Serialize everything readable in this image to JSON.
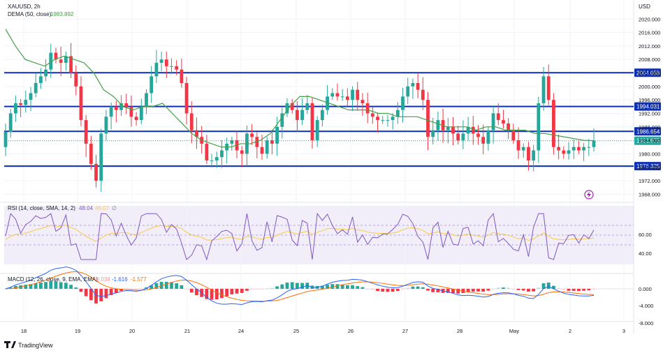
{
  "header": {
    "symbol": "XAUUSD, 2h",
    "dema_label": "DEMA (50, close)",
    "dema_value": "1983.892",
    "currency": "USD"
  },
  "rsi": {
    "label": "RSI (14, close, SMA, 14, 2)",
    "value": "48.04",
    "ma_value": "46.07",
    "na": "∅",
    "levels": [
      "60.00",
      "40.00"
    ]
  },
  "macd": {
    "label": "MACD (12, 26, close, 9, EMA, EMA)",
    "hist_value": "-0.038",
    "macd_value": "-1.616",
    "signal_value": "-1.577",
    "levels": [
      "0.000",
      "-4.000",
      "-8.000"
    ]
  },
  "branding": {
    "name": "TradingView"
  },
  "colors": {
    "up": "#26a69a",
    "down": "#f23645",
    "dema": "#43a047",
    "hline": "#0d2fb0",
    "rsi": "#7e57c2",
    "rsi_ma": "#f7c948",
    "macd": "#2962ff",
    "signal": "#ff6d00"
  },
  "chart_data": {
    "type": "candlestick",
    "title": "XAUUSD, 2h",
    "x_ticks": [
      "18",
      "19",
      "20",
      "21",
      "24",
      "25",
      "26",
      "27",
      "28",
      "May",
      "2",
      "3"
    ],
    "y_ticks": [
      "2020.000",
      "2016.000",
      "2012.000",
      "2008.000",
      "2004.000",
      "2000.000",
      "1996.000",
      "1992.000",
      "1988.000",
      "1984.000",
      "1980.000",
      "1976.000",
      "1972.000",
      "1968.000"
    ],
    "ylim": [
      1966,
      2024
    ],
    "last_price": "1983.875",
    "price_lines": [
      {
        "value": 2004.058,
        "label": "2004.058"
      },
      {
        "value": 1994.031,
        "label": "1994.031"
      },
      {
        "value": 1986.654,
        "label": "1986.654"
      },
      {
        "value": 1976.325,
        "label": "1976.325"
      }
    ],
    "close_series": [
      1986.5,
      1992,
      1995,
      1994.5,
      1996,
      1998,
      2001,
      2003,
      2005,
      2010,
      2008,
      2007,
      2009,
      2004,
      2000,
      1990,
      1983,
      1977,
      1972,
      1986,
      1991,
      1994,
      1993,
      1995,
      1994,
      1991,
      1990,
      1994,
      1998,
      2003,
      2007,
      2008,
      2006,
      2006,
      2005,
      2001,
      1992,
      1987,
      1985,
      1983,
      1978,
      1978,
      1979,
      1981,
      1983,
      1984,
      1981,
      1980,
      1986,
      1985,
      1982,
      1980,
      1984,
      1983,
      1988,
      1992,
      1995,
      1993,
      1990,
      1993,
      1995,
      1984,
      1990,
      1993,
      1997,
      1998,
      1997,
      1997,
      1996,
      1999,
      1996,
      1995,
      1992,
      1991,
      1990,
      1990,
      1990,
      1991,
      1993,
      1997,
      2000,
      2001,
      1999,
      1996,
      1985,
      1987,
      1990,
      1987,
      1988,
      1986,
      1984,
      1986,
      1988,
      1986,
      1985,
      1983,
      1987,
      1992,
      1990,
      1989,
      1987,
      1984,
      1981,
      1982,
      1978,
      1981,
      1995,
      2003,
      1996,
      1982,
      1981,
      1980,
      1981,
      1982,
      1981,
      1982,
      1982,
      1983.9
    ],
    "dema_series": [
      2017,
      2012,
      2008,
      2007,
      2006,
      2008,
      2009,
      2008,
      2007,
      2004,
      1999,
      1997,
      1994,
      1993,
      1994,
      1994,
      1995,
      1992,
      1989,
      1986,
      1984,
      1983,
      1982,
      1982,
      1983,
      1983,
      1984,
      1986,
      1990,
      1994,
      1997,
      1997,
      1996,
      1995,
      1994,
      1993,
      1993,
      1993,
      1992,
      1992,
      1991,
      1991,
      1991,
      1990,
      1989,
      1988,
      1988,
      1988,
      1987,
      1988,
      1988,
      1987,
      1987,
      1987,
      1986,
      1986,
      1985.5,
      1985,
      1984.5,
      1984,
      1983.9
    ]
  }
}
